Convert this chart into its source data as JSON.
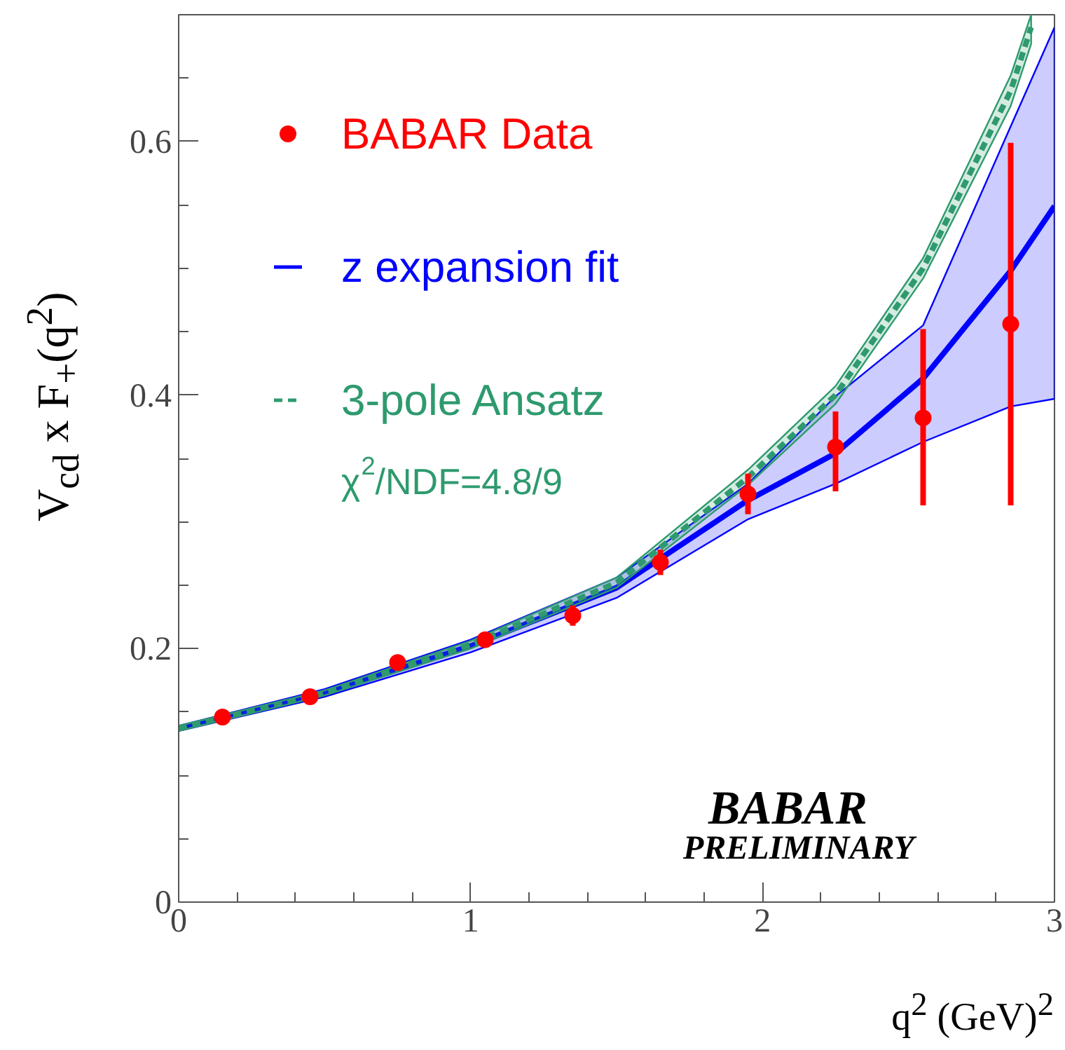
{
  "chart_data": {
    "type": "scatter",
    "xlabel": "q$^{2}$ (GeV)$^{2}$",
    "ylabel": "V$_{cd}$ x F$_{+}$(q$^{2}$)",
    "xlim": [
      0,
      3
    ],
    "ylim": [
      0,
      0.7
    ],
    "xticks": [
      0,
      1,
      2,
      3
    ],
    "yticks": [
      0,
      0.2,
      0.4,
      0.6
    ],
    "legend": "top left",
    "grid": false,
    "annotations": [
      "χ$^{2}$/NDF=4.8/9",
      "BABAR",
      "PRELIMINARY"
    ],
    "series": [
      {
        "type": "line",
        "name": "z expansion fit",
        "color": "#0000ff",
        "x": [
          0,
          0.5,
          1.0,
          1.5,
          1.95,
          2.25,
          2.55,
          2.85,
          3.0
        ],
        "values": [
          0.137,
          0.165,
          0.202,
          0.248,
          0.317,
          0.354,
          0.413,
          0.498,
          0.549
        ],
        "lower": [
          0.135,
          0.162,
          0.197,
          0.24,
          0.302,
          0.33,
          0.363,
          0.391,
          0.397
        ],
        "upper": [
          0.139,
          0.168,
          0.207,
          0.256,
          0.33,
          0.399,
          0.455,
          0.612,
          0.69
        ]
      },
      {
        "type": "line",
        "name": "3-pole Ansatz",
        "color": "#2e9a6e",
        "line_style": "dashed",
        "x": [
          0,
          0.5,
          1.0,
          1.5,
          1.95,
          2.25,
          2.55,
          2.85,
          2.92
        ],
        "values": [
          0.137,
          0.165,
          0.203,
          0.252,
          0.335,
          0.4,
          0.5,
          0.64,
          0.69
        ],
        "lower": [
          0.135,
          0.163,
          0.2,
          0.248,
          0.329,
          0.393,
          0.492,
          0.628,
          0.677
        ],
        "upper": [
          0.139,
          0.167,
          0.206,
          0.256,
          0.341,
          0.407,
          0.508,
          0.652,
          0.7
        ]
      },
      {
        "name": "BABAR Data",
        "color": "#ff0000",
        "marker": "circle",
        "x": [
          0.15,
          0.45,
          0.75,
          1.05,
          1.35,
          1.65,
          1.95,
          2.25,
          2.55,
          2.85
        ],
        "values": [
          0.146,
          0.162,
          0.189,
          0.207,
          0.226,
          0.268,
          0.322,
          0.359,
          0.382,
          0.456
        ],
        "errors": [
          null,
          null,
          null,
          null,
          0.008,
          0.01,
          [
            0.306,
            0.338
          ],
          [
            0.324,
            0.387
          ],
          [
            0.313,
            0.452
          ],
          [
            0.313,
            0.599
          ]
        ]
      }
    ]
  }
}
